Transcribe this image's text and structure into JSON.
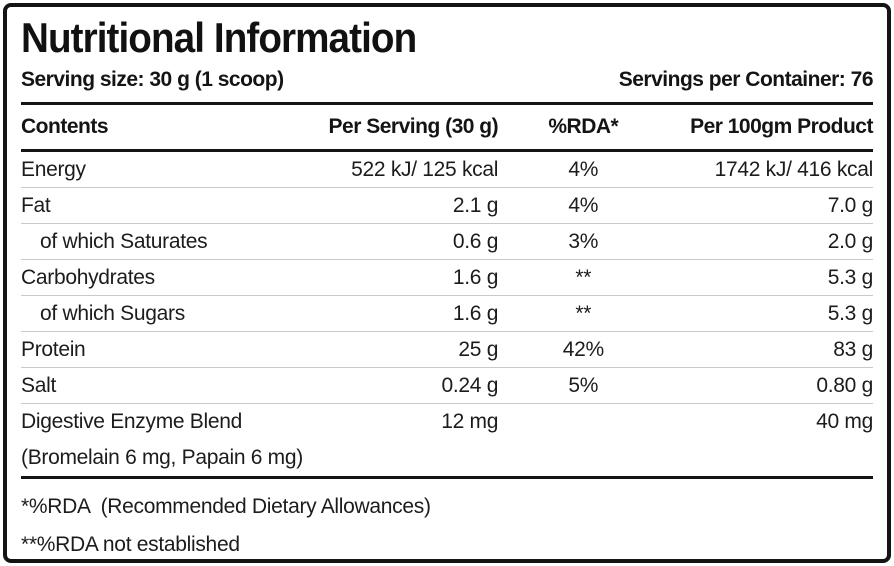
{
  "colors": {
    "border": "#141414",
    "text": "#1c1c1c",
    "row_divider": "#c9c9c9"
  },
  "header": {
    "title": "Nutritional Information",
    "serving_size": "Serving size: 30 g (1 scoop)",
    "servings_per_container": "Servings per Container: 76"
  },
  "table": {
    "columns": [
      "Contents",
      "Per Serving (30 g)",
      "%RDA*",
      "Per 100gm Product"
    ],
    "rows": [
      {
        "label": "Energy",
        "per_serving": "522 kJ/ 125 kcal",
        "rda": "4%",
        "per_100g": "1742 kJ/ 416 kcal"
      },
      {
        "label": "Fat",
        "per_serving": "2.1 g",
        "rda": "4%",
        "per_100g": "7.0 g"
      },
      {
        "label": "of which Saturates",
        "per_serving": "0.6 g",
        "rda": "3%",
        "per_100g": "2.0 g"
      },
      {
        "label": "Carbohydrates",
        "per_serving": "1.6 g",
        "rda": "**",
        "per_100g": "5.3 g"
      },
      {
        "label": "of which Sugars",
        "per_serving": "1.6 g",
        "rda": "**",
        "per_100g": "5.3 g"
      },
      {
        "label": "Protein",
        "per_serving": "25 g",
        "rda": "42%",
        "per_100g": "83 g"
      },
      {
        "label": "Salt",
        "per_serving": "0.24 g",
        "rda": "5%",
        "per_100g": "0.80 g"
      },
      {
        "label": "Digestive Enzyme Blend",
        "per_serving": "12 mg",
        "rda": "",
        "per_100g": "40 mg"
      },
      {
        "label": "(Bromelain 6 mg, Papain 6 mg)",
        "per_serving": "",
        "rda": "",
        "per_100g": ""
      }
    ],
    "footnotes": [
      "*%RDA  (Recommended Dietary Allowances)",
      "**%RDA not established"
    ]
  }
}
